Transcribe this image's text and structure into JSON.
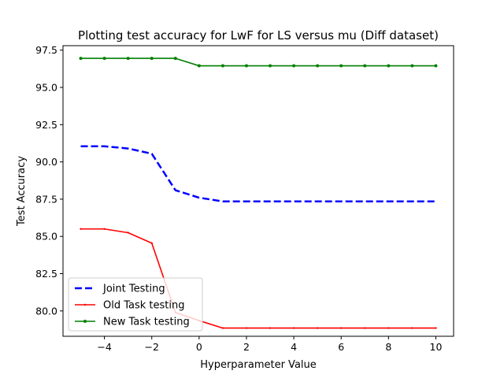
{
  "chart_data": {
    "type": "line",
    "title": "Plotting test accuracy for LwF for LS versus mu (Diff dataset)",
    "xlabel": "Hyperparameter Value",
    "ylabel": "Test Accuracy",
    "xlim": [
      -5.75,
      10.75
    ],
    "ylim": [
      78.3,
      97.8
    ],
    "xticks": [
      -4,
      -2,
      0,
      2,
      4,
      6,
      8,
      10
    ],
    "xtick_labels": [
      "−4",
      "−2",
      "0",
      "2",
      "4",
      "6",
      "8",
      "10"
    ],
    "yticks": [
      80.0,
      82.5,
      85.0,
      87.5,
      90.0,
      92.5,
      95.0,
      97.5
    ],
    "ytick_labels": [
      "80.0",
      "82.5",
      "85.0",
      "87.5",
      "90.0",
      "92.5",
      "95.0",
      "97.5"
    ],
    "grid": false,
    "legend_position": "lower-left",
    "x": [
      -5,
      -4,
      -3,
      -2,
      -1,
      0,
      1,
      2,
      3,
      4,
      5,
      6,
      7,
      8,
      9,
      10
    ],
    "series": [
      {
        "name": "Joint Testing",
        "color": "#0000ff",
        "style": "dashed",
        "marker": "none",
        "values": [
          91.05,
          91.05,
          90.9,
          90.55,
          88.1,
          87.6,
          87.35,
          87.35,
          87.35,
          87.35,
          87.35,
          87.35,
          87.35,
          87.35,
          87.35,
          87.35
        ]
      },
      {
        "name": "Old Task testing",
        "color": "#ff0000",
        "style": "solid",
        "marker": "point",
        "values": [
          85.5,
          85.5,
          85.25,
          84.55,
          79.9,
          79.35,
          78.85,
          78.85,
          78.85,
          78.85,
          78.85,
          78.85,
          78.85,
          78.85,
          78.85,
          78.85
        ]
      },
      {
        "name": "New Task testing",
        "color": "#008000",
        "style": "solid",
        "marker": "dot",
        "values": [
          96.95,
          96.95,
          96.95,
          96.95,
          96.95,
          96.45,
          96.45,
          96.45,
          96.45,
          96.45,
          96.45,
          96.45,
          96.45,
          96.45,
          96.45,
          96.45
        ]
      }
    ]
  }
}
